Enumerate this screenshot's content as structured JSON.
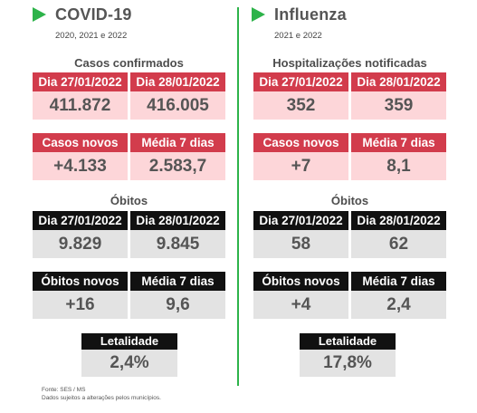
{
  "covid": {
    "title": "COVID-19",
    "years": "2020, 2021 e 2022",
    "cases_title": "Casos confirmados",
    "cases_dates": [
      "Dia 27/01/2022",
      "Dia 28/01/2022"
    ],
    "cases_values": [
      "411.872",
      "416.005"
    ],
    "cases_new_label": "Casos novos",
    "cases_avg_label": "Média 7 dias",
    "cases_new_value": "+4.133",
    "cases_avg_value": "2.583,7",
    "deaths_title": "Óbitos",
    "deaths_dates": [
      "Dia 27/01/2022",
      "Dia 28/01/2022"
    ],
    "deaths_values": [
      "9.829",
      "9.845"
    ],
    "deaths_new_label": "Óbitos novos",
    "deaths_avg_label": "Média 7 dias",
    "deaths_new_value": "+16",
    "deaths_avg_value": "9,6",
    "lethality_label": "Letalidade",
    "lethality_value": "2,4%"
  },
  "influenza": {
    "title": "Influenza",
    "years": "2021 e 2022",
    "cases_title": "Hospitalizações notificadas",
    "cases_dates": [
      "Dia 27/01/2022",
      "Dia 28/01/2022"
    ],
    "cases_values": [
      "352",
      "359"
    ],
    "cases_new_label": "Casos novos",
    "cases_avg_label": "Média 7 dias",
    "cases_new_value": "+7",
    "cases_avg_value": "8,1",
    "deaths_title": "Óbitos",
    "deaths_dates": [
      "Dia 27/01/2022",
      "Dia 28/01/2022"
    ],
    "deaths_values": [
      "58",
      "62"
    ],
    "deaths_new_label": "Óbitos novos",
    "deaths_avg_label": "Média 7 dias",
    "deaths_new_value": "+4",
    "deaths_avg_value": "2,4",
    "lethality_label": "Letalidade",
    "lethality_value": "17,8%"
  },
  "footer": {
    "source": "Fonte: SES / MS",
    "note": "Dados sujeitos a alterações pelos municípios."
  },
  "colors": {
    "accent_green": "#2db34a",
    "label_red": "#d23c4c",
    "value_pink": "#fdd6d9",
    "label_black": "#111111",
    "value_gray": "#e3e3e3"
  },
  "icons": {
    "section_marker": "triangle-right-icon"
  }
}
